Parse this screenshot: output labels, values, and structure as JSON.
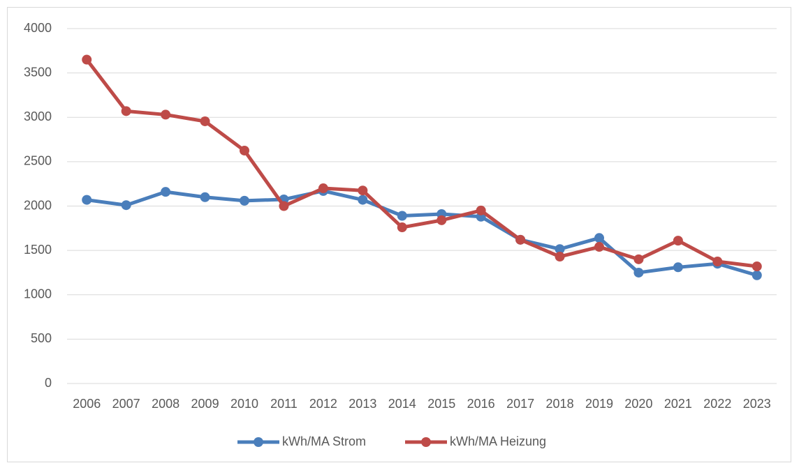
{
  "chart_data": {
    "type": "line",
    "categories": [
      "2006",
      "2007",
      "2008",
      "2009",
      "2010",
      "2011",
      "2012",
      "2013",
      "2014",
      "2015",
      "2016",
      "2017",
      "2018",
      "2019",
      "2020",
      "2021",
      "2022",
      "2023"
    ],
    "series": [
      {
        "name": "kWh/MA Strom",
        "color": "#4a7ebb",
        "values": [
          2070,
          2010,
          2160,
          2100,
          2060,
          2075,
          2170,
          2070,
          1890,
          1910,
          1880,
          1620,
          1515,
          1640,
          1250,
          1310,
          1350,
          1220
        ]
      },
      {
        "name": "kWh/MA Heizung",
        "color": "#be4b48",
        "values": [
          3650,
          3070,
          3030,
          2955,
          2625,
          2000,
          2200,
          2175,
          1760,
          1840,
          1950,
          1620,
          1430,
          1540,
          1400,
          1610,
          1375,
          1320
        ]
      }
    ],
    "ylim": [
      0,
      4000
    ],
    "yticks": [
      0,
      500,
      1000,
      1500,
      2000,
      2500,
      3000,
      3500,
      4000
    ],
    "grid": true,
    "legend": "bottom"
  }
}
